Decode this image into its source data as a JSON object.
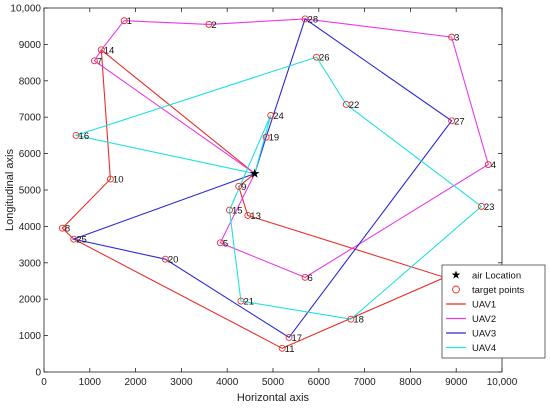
{
  "chart_data": {
    "type": "scatter",
    "xlabel": "Horizontal axis",
    "ylabel": "Longitudinal axis",
    "xlim": [
      0,
      10000
    ],
    "ylim": [
      0,
      10000
    ],
    "x_ticks": [
      "0",
      "1000",
      "2000",
      "3000",
      "4000",
      "5000",
      "6000",
      "7000",
      "8000",
      "9000",
      "10,000"
    ],
    "y_ticks": [
      "0",
      "1000",
      "2000",
      "3000",
      "4000",
      "5000",
      "6000",
      "7000",
      "8000",
      "9000",
      "10,000"
    ],
    "air_location": {
      "x": 4600,
      "y": 5450
    },
    "target_points": [
      {
        "id": "1",
        "x": 1750,
        "y": 9650
      },
      {
        "id": "2",
        "x": 3600,
        "y": 9550
      },
      {
        "id": "3",
        "x": 8900,
        "y": 9200
      },
      {
        "id": "4",
        "x": 9700,
        "y": 5700
      },
      {
        "id": "5",
        "x": 3850,
        "y": 3550
      },
      {
        "id": "6",
        "x": 5700,
        "y": 2600
      },
      {
        "id": "7",
        "x": 1100,
        "y": 8550
      },
      {
        "id": "8",
        "x": 400,
        "y": 3950
      },
      {
        "id": "9",
        "x": 4250,
        "y": 5100
      },
      {
        "id": "10",
        "x": 1450,
        "y": 5300
      },
      {
        "id": "11",
        "x": 5200,
        "y": 650
      },
      {
        "id": "12",
        "x": 8750,
        "y": 2600
      },
      {
        "id": "13",
        "x": 4450,
        "y": 4300
      },
      {
        "id": "14",
        "x": 1250,
        "y": 8850
      },
      {
        "id": "15",
        "x": 4050,
        "y": 4450
      },
      {
        "id": "16",
        "x": 700,
        "y": 6500
      },
      {
        "id": "17",
        "x": 5350,
        "y": 950
      },
      {
        "id": "18",
        "x": 6700,
        "y": 1450
      },
      {
        "id": "19",
        "x": 4850,
        "y": 6450
      },
      {
        "id": "20",
        "x": 2650,
        "y": 3100
      },
      {
        "id": "21",
        "x": 4300,
        "y": 1950
      },
      {
        "id": "22",
        "x": 6600,
        "y": 7350
      },
      {
        "id": "23",
        "x": 9550,
        "y": 4550
      },
      {
        "id": "24",
        "x": 4950,
        "y": 7050
      },
      {
        "id": "25",
        "x": 650,
        "y": 3650
      },
      {
        "id": "26",
        "x": 5950,
        "y": 8650
      },
      {
        "id": "27",
        "x": 8900,
        "y": 6900
      },
      {
        "id": "28",
        "x": 5700,
        "y": 9700
      }
    ],
    "series": [
      {
        "name": "UAV1",
        "color": "#e8302a",
        "route": [
          "air",
          "14",
          "10",
          "8",
          "25",
          "11",
          "12",
          "13",
          "9",
          "air"
        ]
      },
      {
        "name": "UAV2",
        "color": "#e83ae8",
        "route": [
          "air",
          "7",
          "14",
          "1",
          "2",
          "28",
          "3",
          "4",
          "6",
          "5",
          "air"
        ]
      },
      {
        "name": "UAV3",
        "color": "#2a2ad6",
        "route": [
          "air",
          "25",
          "20",
          "17",
          "27",
          "28",
          "19",
          "air"
        ]
      },
      {
        "name": "UAV4",
        "color": "#22e0e0",
        "route": [
          "air",
          "16",
          "26",
          "22",
          "23",
          "18",
          "21",
          "15",
          "24",
          "air"
        ]
      }
    ],
    "legend": {
      "position": "bottom-right",
      "entries": [
        {
          "label": "air Location",
          "kind": "star"
        },
        {
          "label": "target points",
          "kind": "circle"
        },
        {
          "label": "UAV1",
          "kind": "line"
        },
        {
          "label": "UAV2",
          "kind": "line"
        },
        {
          "label": "UAV3",
          "kind": "line"
        },
        {
          "label": "UAV4",
          "kind": "line"
        }
      ]
    },
    "colors": {
      "target_marker": "#e8302a",
      "star": "#000000",
      "axis": "#222222"
    }
  }
}
